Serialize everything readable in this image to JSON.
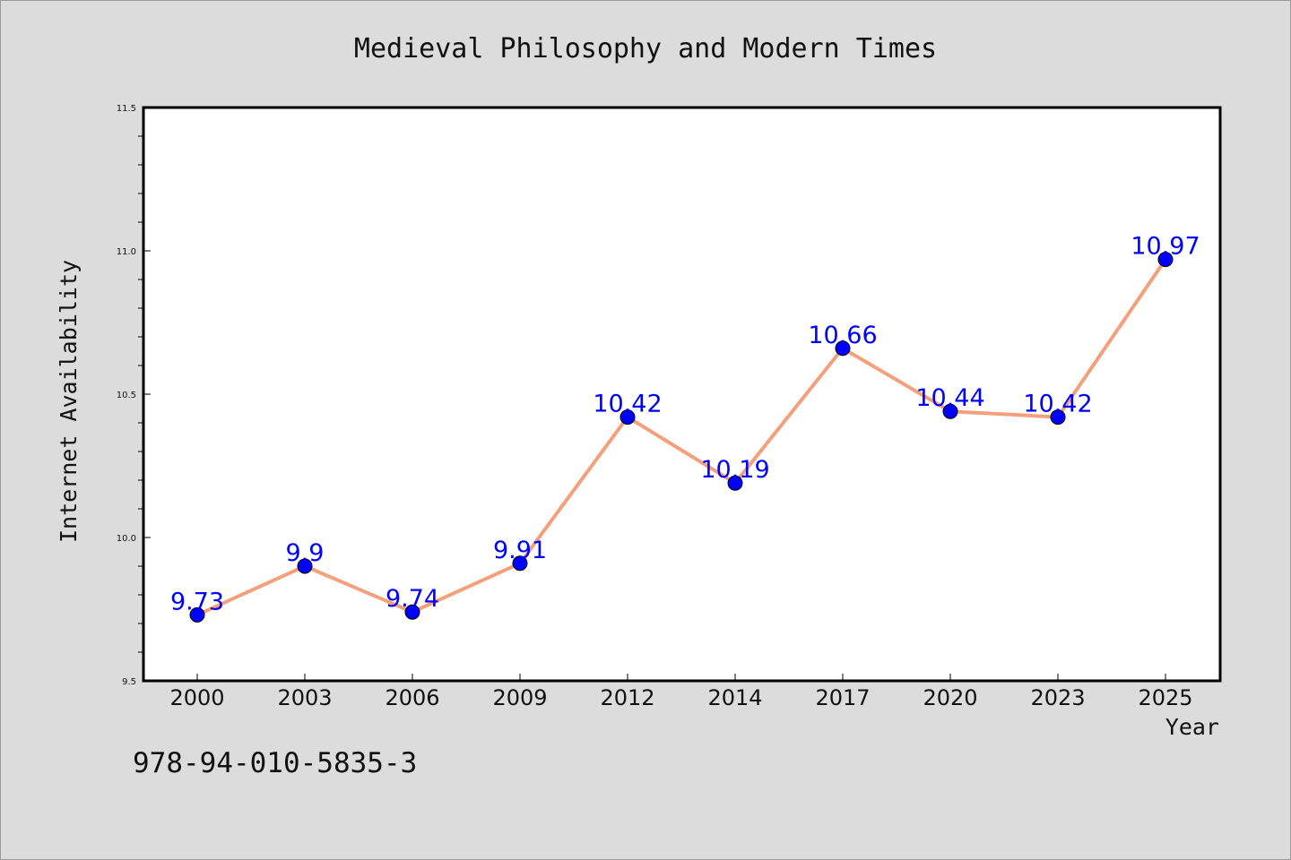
{
  "chart_data": {
    "type": "line",
    "title": "Medieval Philosophy and Modern Times",
    "xlabel": "Year",
    "ylabel": "Internet Availability",
    "categories": [
      "2000",
      "2003",
      "2006",
      "2009",
      "2012",
      "2014",
      "2017",
      "2020",
      "2023",
      "2025"
    ],
    "series": [
      {
        "values": [
          9.73,
          9.9,
          9.74,
          9.91,
          10.42,
          10.19,
          10.66,
          10.44,
          10.42,
          10.97
        ],
        "labels": [
          "9.73",
          "9.9",
          "9.74",
          "9.91",
          "10.42",
          "10.19",
          "10.66",
          "10.44",
          "10.42",
          "10.97"
        ]
      }
    ],
    "ylim": [
      9.5,
      11.5
    ],
    "yticks": [
      "9.5",
      "10.0",
      "10.5",
      "11.0",
      "11.5"
    ],
    "grid": false,
    "colors": {
      "line": "#f4a07a",
      "marker": "#0000ff",
      "label": "#0000ff"
    }
  },
  "footer": {
    "isbn": "978-94-010-5835-3"
  }
}
